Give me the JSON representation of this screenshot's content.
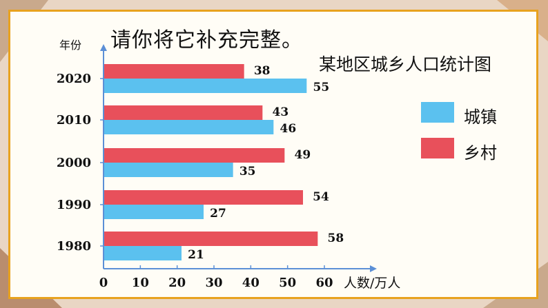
{
  "prompt": "请你将它补充完整。",
  "legend": [
    {
      "name": "城镇",
      "color": "#5bc1ef"
    },
    {
      "name": "乡村",
      "color": "#e8505b"
    }
  ],
  "chart_data": {
    "type": "bar",
    "orientation": "horizontal",
    "title": "某地区城乡人口统计图",
    "ylabel": "年份",
    "xlabel": "人数/万人",
    "categories": [
      "2020",
      "2010",
      "2000",
      "1990",
      "1980"
    ],
    "series": [
      {
        "name": "乡村",
        "values": [
          38,
          43,
          49,
          54,
          58
        ],
        "color": "#e8505b"
      },
      {
        "name": "城镇",
        "values": [
          55,
          46,
          35,
          27,
          21
        ],
        "color": "#5bc1ef"
      }
    ],
    "xticks": [
      "0",
      "10",
      "20",
      "30",
      "40",
      "50",
      "60"
    ],
    "xlim": [
      0,
      60
    ],
    "grid": false,
    "legend_position": "right"
  }
}
